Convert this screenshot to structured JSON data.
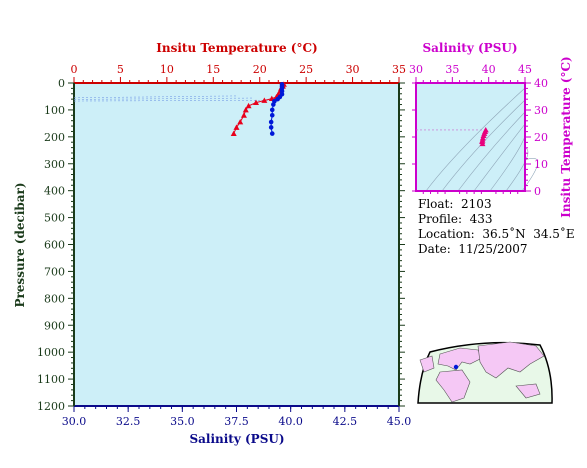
{
  "chart_data": [
    {
      "type": "scatter",
      "title": "",
      "top_axis": {
        "label": "Insitu Temperature (°C)",
        "range": [
          0,
          35
        ],
        "ticks": [
          "0",
          "5",
          "10",
          "15",
          "20",
          "25",
          "30",
          "35"
        ]
      },
      "bottom_axis": {
        "label": "Salinity (PSU)",
        "range": [
          30.0,
          45.0
        ],
        "ticks": [
          "30.0",
          "32.5",
          "35.0",
          "37.5",
          "40.0",
          "42.5",
          "45.0"
        ]
      },
      "left_axis": {
        "label": "Pressure (decibar)",
        "range": [
          1200,
          0
        ],
        "inverted": true,
        "ticks": [
          "0",
          "100",
          "200",
          "300",
          "400",
          "500",
          "600",
          "700",
          "800",
          "900",
          "1000",
          "1100",
          "1200"
        ]
      },
      "series": [
        {
          "axis_x": "temperature",
          "marker": "triangle",
          "color": "#e8001c",
          "points": [
            [
              22.6,
              5
            ],
            [
              22.5,
              12
            ],
            [
              22.3,
              20
            ],
            [
              22.2,
              30
            ],
            [
              22.0,
              42
            ],
            [
              21.8,
              52
            ],
            [
              21.3,
              58
            ],
            [
              20.5,
              65
            ],
            [
              19.6,
              73
            ],
            [
              18.8,
              85
            ],
            [
              18.5,
              100
            ],
            [
              18.3,
              120
            ],
            [
              17.9,
              145
            ],
            [
              17.5,
              165
            ],
            [
              17.2,
              188
            ]
          ]
        },
        {
          "axis_x": "salinity",
          "marker": "circle",
          "color": "#0018d8",
          "points": [
            [
              39.6,
              5
            ],
            [
              39.6,
              12
            ],
            [
              39.6,
              20
            ],
            [
              39.6,
              30
            ],
            [
              39.6,
              42
            ],
            [
              39.5,
              52
            ],
            [
              39.4,
              60
            ],
            [
              39.25,
              68
            ],
            [
              39.2,
              80
            ],
            [
              39.15,
              100
            ],
            [
              39.15,
              120
            ],
            [
              39.1,
              145
            ],
            [
              39.1,
              165
            ],
            [
              39.15,
              188
            ]
          ]
        }
      ]
    },
    {
      "type": "scatter",
      "title": "",
      "top_axis": {
        "label": "Salinity (PSU)",
        "range": [
          30,
          45
        ],
        "ticks": [
          "30",
          "35",
          "40",
          "45"
        ]
      },
      "right_axis": {
        "label": "Insitu Temperature (°C)",
        "range": [
          0,
          40
        ],
        "ticks": [
          "0",
          "10",
          "20",
          "30",
          "40"
        ]
      },
      "series": [
        {
          "marker": "triangle",
          "color": "#e8007c",
          "points": [
            [
              39.6,
              22.6
            ],
            [
              39.5,
              22.0
            ],
            [
              39.4,
              21.3
            ],
            [
              39.3,
              20.5
            ],
            [
              39.2,
              19.6
            ],
            [
              39.15,
              18.8
            ],
            [
              39.1,
              18.3
            ],
            [
              39.15,
              17.5
            ]
          ]
        }
      ]
    }
  ],
  "info": {
    "float": "Float:  2103",
    "profile": "Profile:  433",
    "location": "Location:  36.5˚N  34.5˚E",
    "date": "Date:  11/25/2007"
  },
  "colors": {
    "plot_bg": "#cdeff8",
    "top_axis": "#cc0000",
    "bottom_axis": "#0a0a8a",
    "left_axis": "#1a3a1a",
    "ts_axis": "#cc00cc",
    "map_land": "#f5c8f5",
    "map_ocean": "#e8f8e8"
  }
}
